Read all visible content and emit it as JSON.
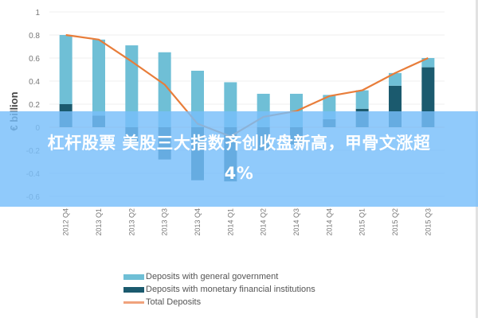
{
  "chart_data": {
    "type": "bar",
    "subtype": "stacked bar with line overlay",
    "title": "",
    "xlabel": "",
    "ylabel": "€ billion",
    "ylim": [
      -0.6,
      1.0
    ],
    "yticks": [
      1,
      0.8,
      0.6,
      0.4,
      0.2,
      0,
      -0.2,
      -0.4,
      -0.6
    ],
    "ytick_labels": [
      "1",
      "0.8",
      "0.6",
      "0.4",
      "0.2",
      "0",
      "-0.2",
      "-0.4",
      "-0.6"
    ],
    "grid": true,
    "legend_position": "bottom",
    "categories": [
      "2012 Q4",
      "2013 Q1",
      "2013 Q2",
      "2013 Q3",
      "2013 Q4",
      "2014 Q1",
      "2014 Q2",
      "2014 Q3",
      "2014 Q4",
      "2015 Q1",
      "2015 Q2",
      "2015 Q3"
    ],
    "series": [
      {
        "name": "Deposits with general government",
        "type": "bar",
        "color": "#6fbfd6",
        "values": [
          0.6,
          0.66,
          0.71,
          0.65,
          0.49,
          0.39,
          0.29,
          0.29,
          0.21,
          0.16,
          0.11,
          0.08
        ]
      },
      {
        "name": "Deposits with monetary financial institutions",
        "type": "bar",
        "color": "#1b5a6e",
        "values": [
          0.2,
          0.1,
          -0.14,
          -0.28,
          -0.46,
          -0.47,
          -0.2,
          -0.15,
          0.07,
          0.16,
          0.36,
          0.52
        ]
      },
      {
        "name": "Total Deposits",
        "type": "line",
        "color": "#e87d3a",
        "values": [
          0.8,
          0.76,
          0.57,
          0.37,
          0.03,
          -0.08,
          0.09,
          0.14,
          0.27,
          0.32,
          0.47,
          0.6
        ]
      }
    ]
  },
  "legend": {
    "items": [
      {
        "label": "Deposits with general government",
        "color": "#6fbfd6",
        "kind": "box"
      },
      {
        "label": "Deposits with monetary financial institutions",
        "color": "#1b5a6e",
        "kind": "box"
      },
      {
        "label": "Total Deposits",
        "color": "#f0a27c",
        "kind": "line"
      }
    ]
  },
  "banner": {
    "text_line1": "杠杆股票 美股三大指数齐创收盘新高，甲骨文涨超",
    "text_line2": "4%"
  }
}
